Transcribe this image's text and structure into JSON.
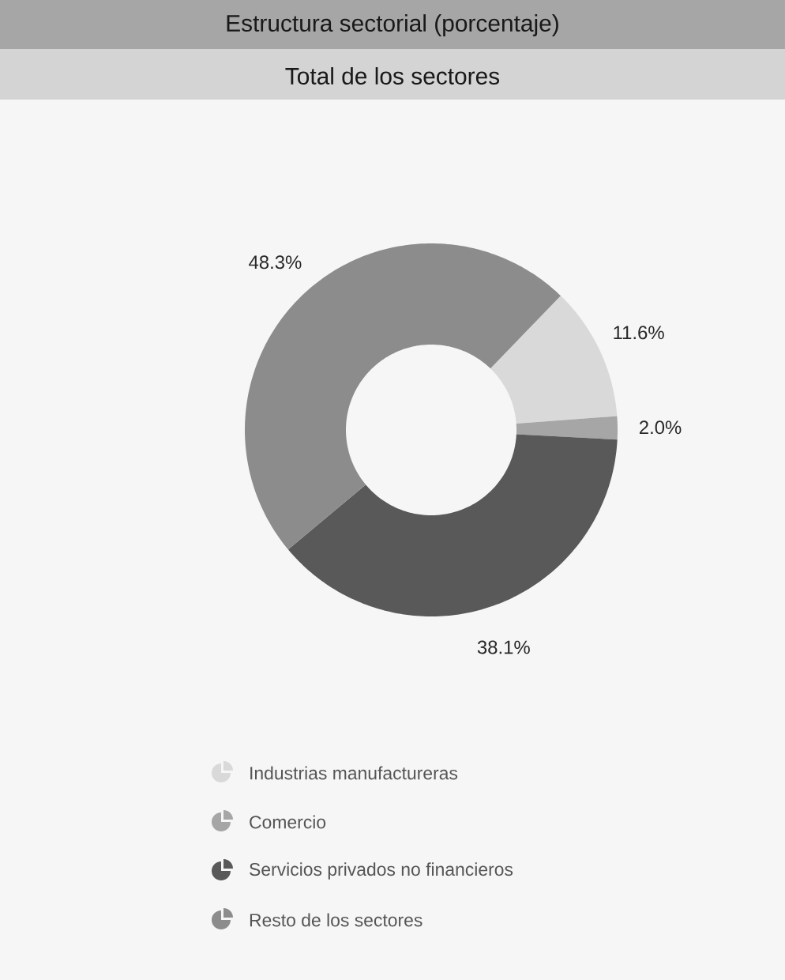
{
  "chart_data": {
    "type": "donut",
    "title": "Estructura sectorial (porcentaje)",
    "subtitle": "Total de los sectores",
    "categories": [
      "Industrias manufactureras",
      "Comercio",
      "Servicios privados no financieros",
      "Resto de los sectores"
    ],
    "values": [
      11.6,
      2.0,
      38.1,
      48.3
    ],
    "colors": [
      "#d9d9d9",
      "#a6a6a6",
      "#595959",
      "#8c8c8c"
    ],
    "value_labels": [
      "11.6%",
      "2.0%",
      "38.1%",
      "48.3%"
    ],
    "legend": "bottom"
  }
}
